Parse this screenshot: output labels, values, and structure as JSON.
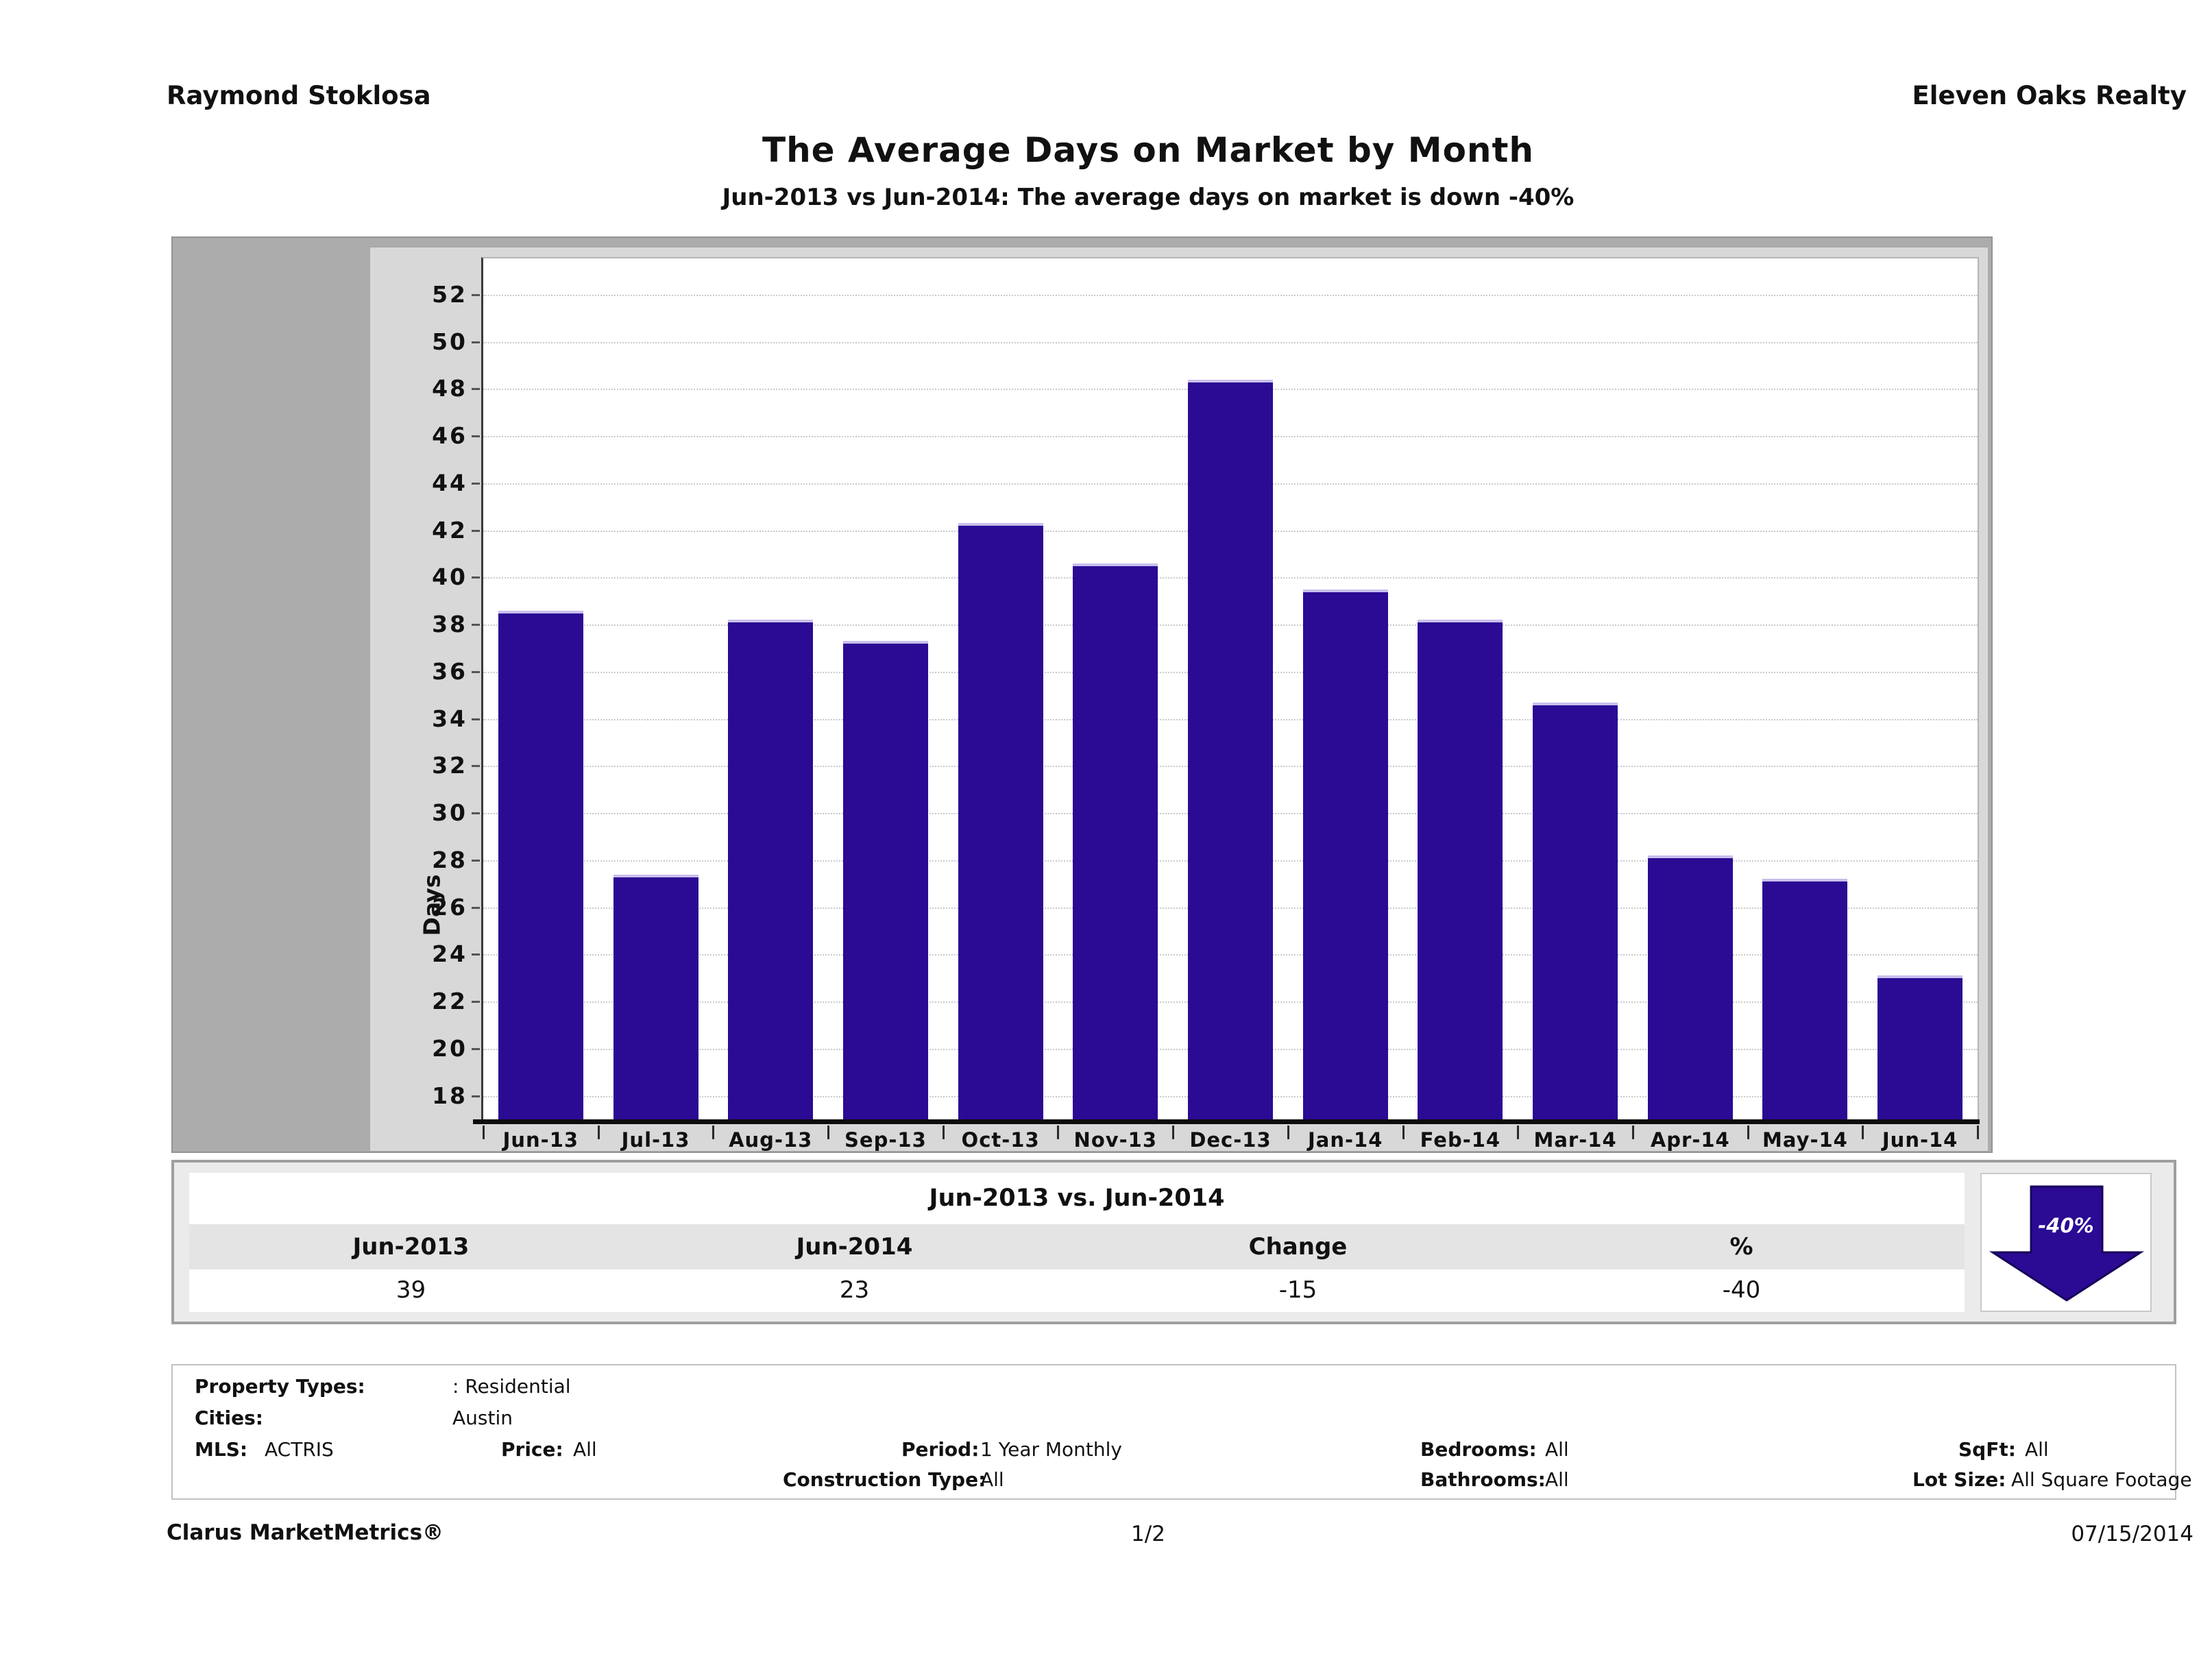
{
  "header": {
    "agent": "Raymond Stoklosa",
    "company": "Eleven Oaks Realty"
  },
  "title": "The Average Days on Market by Month",
  "subtitle": "Jun-2013 vs Jun-2014: The average days on market is down -40%",
  "chart_data": {
    "type": "bar",
    "title": "The Average Days on Market by Month",
    "categories": [
      "Jun-13",
      "Jul-13",
      "Aug-13",
      "Sep-13",
      "Oct-13",
      "Nov-13",
      "Dec-13",
      "Jan-14",
      "Feb-14",
      "Mar-14",
      "Apr-14",
      "May-14",
      "Jun-14"
    ],
    "values": [
      38.6,
      27.4,
      38.2,
      37.3,
      42.3,
      40.6,
      48.4,
      39.5,
      38.2,
      34.7,
      28.2,
      27.2,
      23.1
    ],
    "xlabel": "",
    "ylabel": "Days",
    "ylim": [
      17,
      53.6
    ],
    "yticks": [
      18,
      20,
      22,
      24,
      26,
      28,
      30,
      32,
      34,
      36,
      38,
      40,
      42,
      44,
      46,
      48,
      50,
      52
    ],
    "grid": "horizontal-dotted",
    "legend": "none",
    "bar_color": "#2b0a94"
  },
  "summary_table": {
    "title": "Jun-2013 vs. Jun-2014",
    "headers": [
      "Jun-2013",
      "Jun-2014",
      "Change",
      "%"
    ],
    "values": [
      "39",
      "23",
      "-15",
      "-40"
    ],
    "arrow_badge": {
      "label": "-40%",
      "direction": "down",
      "color": "#2b0a94"
    }
  },
  "details": {
    "property_types_label": "Property Types:",
    "property_types_value": ": Residential",
    "cities_label": "Cities:",
    "cities_value": "Austin",
    "mls_label": "MLS:",
    "mls_value": "ACTRIS",
    "price_label": "Price:",
    "price_value": "All",
    "period_label": "Period:",
    "period_value": "1 Year Monthly",
    "bedrooms_label": "Bedrooms:",
    "bedrooms_value": "All",
    "sqft_label": "SqFt:",
    "sqft_value": "All",
    "construction_label": "Construction Type:",
    "construction_value": "All",
    "bathrooms_label": "Bathrooms:",
    "bathrooms_value": "All",
    "lotsize_label": "Lot Size:",
    "lotsize_value": "All Square Footage"
  },
  "footer": {
    "brand": "Clarus MarketMetrics®",
    "page": "1/2",
    "date": "07/15/2014"
  }
}
